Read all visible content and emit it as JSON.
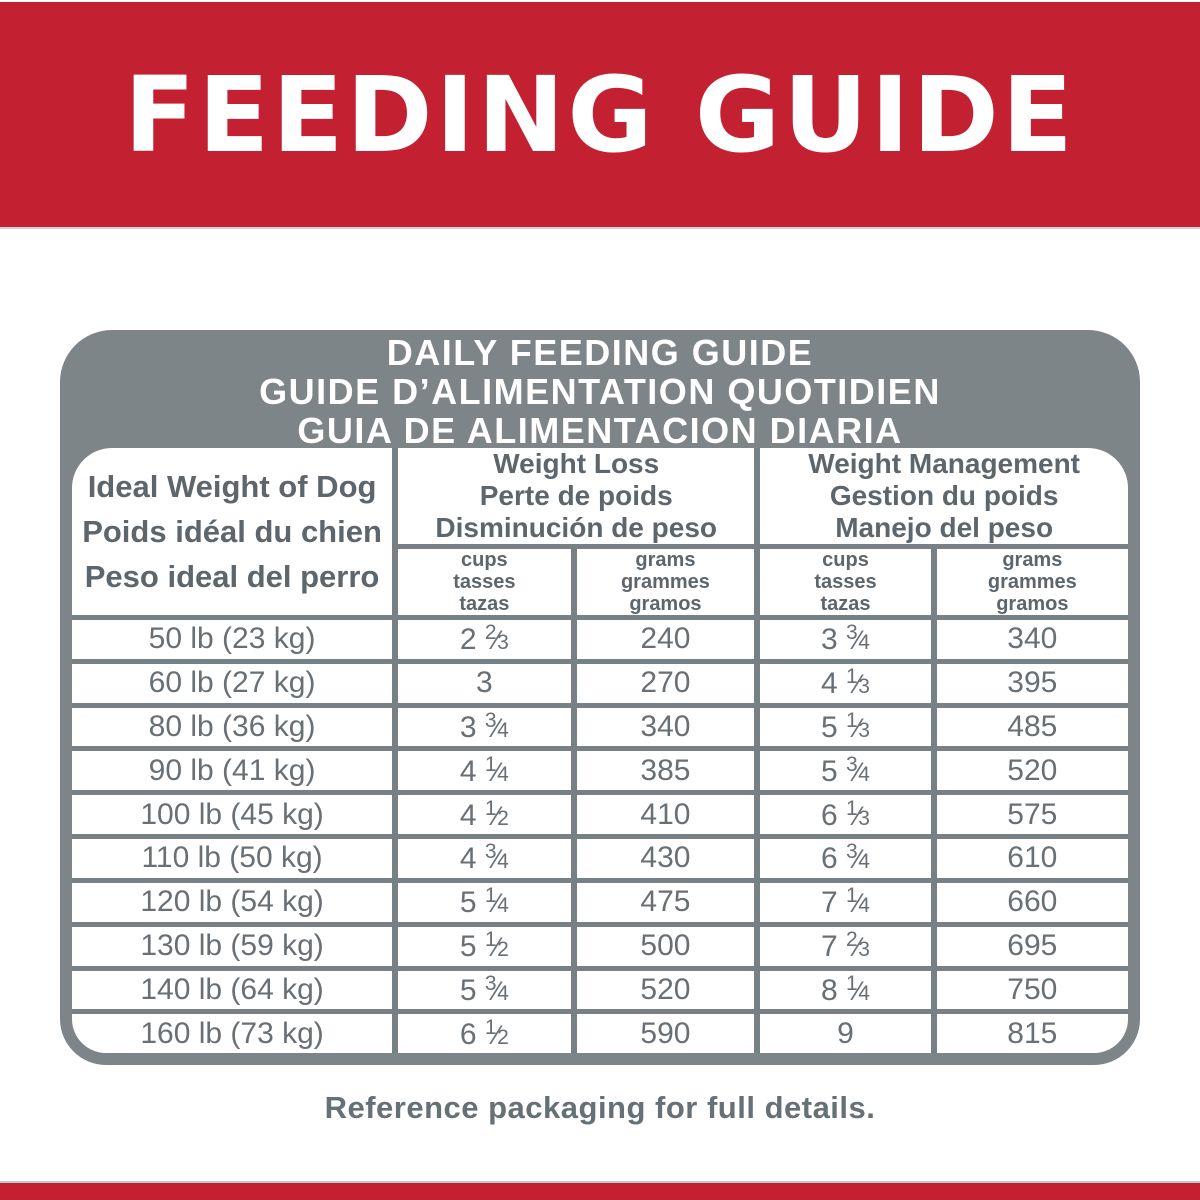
{
  "colors": {
    "red": "#c32032",
    "gray": "#7d8589",
    "border": "#778085",
    "header_text": "#5d666c",
    "data_text": "#686f75"
  },
  "banner": {
    "title": "FEEDING GUIDE"
  },
  "guide": {
    "title_lines": [
      "DAILY FEEDING GUIDE",
      "GUIDE D’ALIMENTATION QUOTIDIEN",
      "GUIA DE ALIMENTACION DIARIA"
    ],
    "weight_header_lines": [
      "Ideal Weight of Dog",
      "Poids idéal du chien",
      "Peso ideal del perro"
    ],
    "group_headers": [
      {
        "lines": [
          "Weight Loss",
          "Perte de poids",
          "Disminución de peso"
        ]
      },
      {
        "lines": [
          "Weight Management",
          "Gestion du poids",
          "Manejo del peso"
        ]
      }
    ],
    "unit_headers": {
      "cups": [
        "cups",
        "tasses",
        "tazas"
      ],
      "grams": [
        "grams",
        "grammes",
        "gramos"
      ]
    },
    "rows": [
      {
        "weight": "50 lb (23 kg)",
        "wl_cups": "2 2/3",
        "wl_grams": "240",
        "wm_cups": "3 3/4",
        "wm_grams": "340"
      },
      {
        "weight": "60 lb (27 kg)",
        "wl_cups": "3",
        "wl_grams": "270",
        "wm_cups": "4 1/3",
        "wm_grams": "395"
      },
      {
        "weight": "80 lb (36 kg)",
        "wl_cups": "3 3/4",
        "wl_grams": "340",
        "wm_cups": "5 1/3",
        "wm_grams": "485"
      },
      {
        "weight": "90 lb (41 kg)",
        "wl_cups": "4 1/4",
        "wl_grams": "385",
        "wm_cups": "5 3/4",
        "wm_grams": "520"
      },
      {
        "weight": "100 lb (45 kg)",
        "wl_cups": "4 1/2",
        "wl_grams": "410",
        "wm_cups": "6 1/3",
        "wm_grams": "575"
      },
      {
        "weight": "110 lb (50 kg)",
        "wl_cups": "4 3/4",
        "wl_grams": "430",
        "wm_cups": "6 3/4",
        "wm_grams": "610"
      },
      {
        "weight": "120 lb (54 kg)",
        "wl_cups": "5 1/4",
        "wl_grams": "475",
        "wm_cups": "7 1/4",
        "wm_grams": "660"
      },
      {
        "weight": "130 lb (59 kg)",
        "wl_cups": "5 1/2",
        "wl_grams": "500",
        "wm_cups": "7 2/3",
        "wm_grams": "695"
      },
      {
        "weight": "140 lb (64 kg)",
        "wl_cups": "5 3/4",
        "wl_grams": "520",
        "wm_cups": "8 1/4",
        "wm_grams": "750"
      },
      {
        "weight": "160 lb (73 kg)",
        "wl_cups": "6 1/2",
        "wl_grams": "590",
        "wm_cups": "9",
        "wm_grams": "815"
      }
    ]
  },
  "footer": {
    "note": "Reference packaging for full details."
  }
}
